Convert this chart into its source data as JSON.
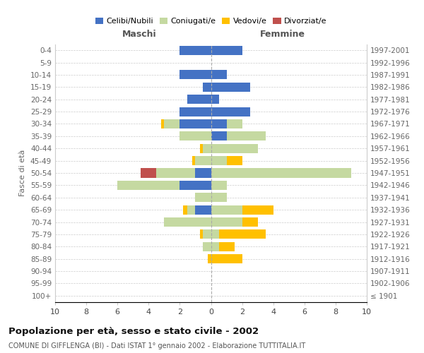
{
  "age_groups": [
    "0-4",
    "5-9",
    "10-14",
    "15-19",
    "20-24",
    "25-29",
    "30-34",
    "35-39",
    "40-44",
    "45-49",
    "50-54",
    "55-59",
    "60-64",
    "65-69",
    "70-74",
    "75-79",
    "80-84",
    "85-89",
    "90-94",
    "95-99",
    "100+"
  ],
  "birth_years": [
    "1997-2001",
    "1992-1996",
    "1987-1991",
    "1982-1986",
    "1977-1981",
    "1972-1976",
    "1967-1971",
    "1962-1966",
    "1957-1961",
    "1952-1956",
    "1947-1951",
    "1942-1946",
    "1937-1941",
    "1932-1936",
    "1927-1931",
    "1922-1926",
    "1917-1921",
    "1912-1916",
    "1907-1911",
    "1902-1906",
    "≤ 1901"
  ],
  "males_celibe": [
    2,
    0,
    2,
    0.5,
    1.5,
    2,
    2,
    0,
    0,
    0,
    1,
    2,
    0,
    1,
    0,
    0,
    0,
    0,
    0,
    0,
    0
  ],
  "males_coniugato": [
    0,
    0,
    0,
    0,
    0,
    0,
    1,
    2,
    0.5,
    1,
    2.5,
    4,
    1,
    0.5,
    3,
    0.5,
    0.5,
    0,
    0,
    0,
    0
  ],
  "males_vedovo": [
    0,
    0,
    0,
    0,
    0,
    0,
    0.2,
    0,
    0.2,
    0.2,
    0,
    0,
    0,
    0.3,
    0,
    0.2,
    0,
    0.2,
    0,
    0,
    0
  ],
  "males_divorziato": [
    0,
    0,
    0,
    0,
    0,
    0,
    0,
    0,
    0,
    0,
    1,
    0,
    0,
    0,
    0,
    0,
    0,
    0,
    0,
    0,
    0
  ],
  "females_nubile": [
    2,
    0,
    1,
    2.5,
    0.5,
    2.5,
    1,
    1,
    0,
    0,
    0,
    0,
    0,
    0,
    0,
    0,
    0,
    0,
    0,
    0,
    0
  ],
  "females_coniugata": [
    0,
    0,
    0,
    0,
    0,
    0,
    1,
    2.5,
    3,
    1,
    9,
    1,
    1,
    2,
    2,
    0.5,
    0.5,
    0,
    0,
    0,
    0
  ],
  "females_vedova": [
    0,
    0,
    0,
    0,
    0,
    0,
    0,
    0,
    0,
    1,
    0,
    0,
    0,
    2,
    1,
    3,
    1,
    2,
    0,
    0,
    0
  ],
  "females_divorziata": [
    0,
    0,
    0,
    0,
    0,
    0,
    0,
    0,
    0,
    0,
    0,
    0,
    0,
    0,
    0,
    0,
    0,
    0,
    0,
    0,
    0
  ],
  "color_celibe": "#4472c4",
  "color_coniugato": "#c5d9a1",
  "color_vedovo": "#ffc000",
  "color_divorziato": "#c0504d",
  "xlim": 10,
  "title": "Popolazione per età, sesso e stato civile - 2002",
  "subtitle": "COMUNE DI GIFFLENGA (BI) - Dati ISTAT 1° gennaio 2002 - Elaborazione TUTTITALIA.IT",
  "ylabel_left": "Fasce di età",
  "label_maschi": "Maschi",
  "label_femmine": "Femmine",
  "legend": [
    "Celibi/Nubili",
    "Coniugati/e",
    "Vedovi/e",
    "Divorziat/e"
  ]
}
